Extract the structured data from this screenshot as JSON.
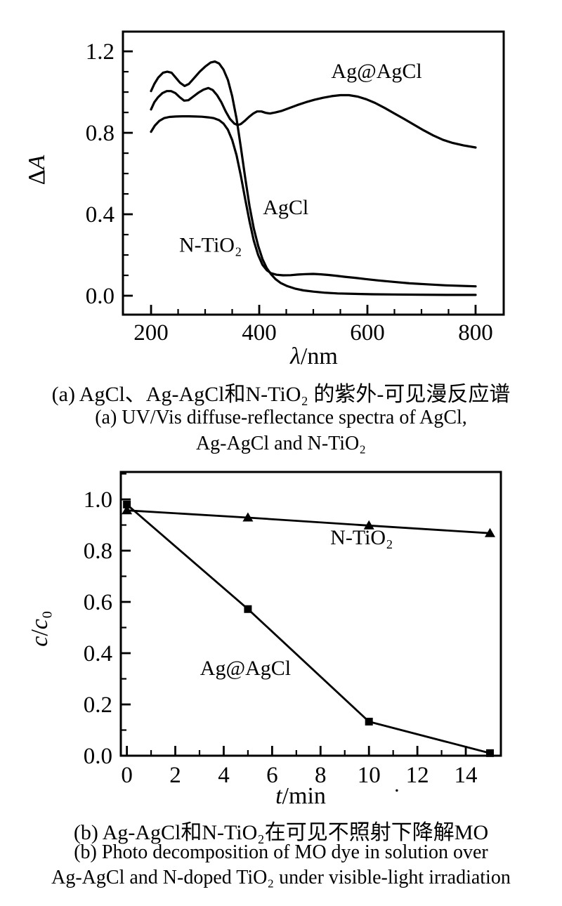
{
  "page": {
    "background": "#ffffff",
    "ink": "#000000"
  },
  "captions": {
    "a": {
      "zh": "(a) AgCl、Ag-AgCl和N-TiO₂ 的紫外-可见漫反应谱",
      "en_line1": "(a) UV/Vis diffuse-reflectance spectra of AgCl,",
      "en_line2": "Ag-AgCl and N-TiO₂"
    },
    "b": {
      "zh": "(b) Ag-AgCl和N-TiO₂在可见不照射下降解MO",
      "en_line1": "(b) Photo decomposition of MO dye in solution over",
      "en_line2": "Ag-AgCl and N-doped TiO₂ under visible-light irradiation"
    }
  },
  "chart_data": [
    {
      "type": "line",
      "title": "",
      "xlabel": "*λ*/nm",
      "ylabel": "Δ*A*",
      "xlim": [
        148,
        852
      ],
      "ylim": [
        -0.093,
        1.297
      ],
      "grid": false,
      "legend": "inline-annotations",
      "x_ticks": {
        "major": [
          200,
          400,
          600,
          800
        ],
        "labels": [
          "200",
          "400",
          "600",
          "800"
        ],
        "minor": [
          250,
          300,
          350,
          450,
          500,
          550,
          650,
          700,
          750
        ]
      },
      "y_ticks": {
        "major": [
          0.0,
          0.4,
          0.8,
          1.2
        ],
        "labels": [
          "0.0",
          "0.4",
          "0.8",
          "1.2"
        ],
        "minor": [
          0.1,
          0.2,
          0.3,
          0.5,
          0.6,
          0.7,
          0.9,
          1.0,
          1.1
        ]
      },
      "series": [
        {
          "name": "AgCl",
          "marker": "none",
          "points": [
            [
              200,
              1.005
            ],
            [
              206,
              1.04
            ],
            [
              213,
              1.07
            ],
            [
              222,
              1.095
            ],
            [
              230,
              1.1
            ],
            [
              238,
              1.095
            ],
            [
              246,
              1.07
            ],
            [
              254,
              1.045
            ],
            [
              262,
              1.03
            ],
            [
              270,
              1.04
            ],
            [
              280,
              1.07
            ],
            [
              290,
              1.1
            ],
            [
              300,
              1.125
            ],
            [
              310,
              1.145
            ],
            [
              318,
              1.15
            ],
            [
              326,
              1.14
            ],
            [
              334,
              1.11
            ],
            [
              342,
              1.06
            ],
            [
              350,
              0.98
            ],
            [
              358,
              0.87
            ],
            [
              366,
              0.73
            ],
            [
              374,
              0.58
            ],
            [
              382,
              0.44
            ],
            [
              390,
              0.33
            ],
            [
              398,
              0.245
            ],
            [
              406,
              0.18
            ],
            [
              414,
              0.135
            ],
            [
              422,
              0.105
            ],
            [
              430,
              0.082
            ],
            [
              440,
              0.062
            ],
            [
              452,
              0.047
            ],
            [
              466,
              0.035
            ],
            [
              482,
              0.026
            ],
            [
              500,
              0.02
            ],
            [
              520,
              0.015
            ],
            [
              545,
              0.011
            ],
            [
              575,
              0.009
            ],
            [
              610,
              0.007
            ],
            [
              650,
              0.006
            ],
            [
              700,
              0.005
            ],
            [
              750,
              0.004
            ],
            [
              800,
              0.004
            ]
          ]
        },
        {
          "name": "N-TiO₂",
          "marker": "none",
          "points": [
            [
              200,
              0.805
            ],
            [
              207,
              0.835
            ],
            [
              215,
              0.858
            ],
            [
              224,
              0.872
            ],
            [
              234,
              0.878
            ],
            [
              246,
              0.88
            ],
            [
              258,
              0.881
            ],
            [
              270,
              0.881
            ],
            [
              282,
              0.88
            ],
            [
              294,
              0.879
            ],
            [
              306,
              0.876
            ],
            [
              316,
              0.872
            ],
            [
              326,
              0.862
            ],
            [
              334,
              0.845
            ],
            [
              342,
              0.815
            ],
            [
              350,
              0.765
            ],
            [
              358,
              0.69
            ],
            [
              366,
              0.59
            ],
            [
              374,
              0.475
            ],
            [
              382,
              0.365
            ],
            [
              390,
              0.27
            ],
            [
              398,
              0.2
            ],
            [
              406,
              0.152
            ],
            [
              414,
              0.125
            ],
            [
              422,
              0.11
            ],
            [
              432,
              0.103
            ],
            [
              444,
              0.1
            ],
            [
              458,
              0.101
            ],
            [
              472,
              0.104
            ],
            [
              486,
              0.106
            ],
            [
              500,
              0.107
            ],
            [
              514,
              0.105
            ],
            [
              528,
              0.102
            ],
            [
              542,
              0.098
            ],
            [
              558,
              0.093
            ],
            [
              576,
              0.088
            ],
            [
              596,
              0.082
            ],
            [
              620,
              0.075
            ],
            [
              648,
              0.068
            ],
            [
              678,
              0.061
            ],
            [
              710,
              0.056
            ],
            [
              745,
              0.051
            ],
            [
              800,
              0.046
            ]
          ]
        },
        {
          "name": "Ag@AgCl",
          "marker": "none",
          "points": [
            [
              200,
              0.915
            ],
            [
              206,
              0.95
            ],
            [
              213,
              0.975
            ],
            [
              221,
              0.995
            ],
            [
              229,
              1.005
            ],
            [
              237,
              1.005
            ],
            [
              245,
              0.995
            ],
            [
              253,
              0.975
            ],
            [
              261,
              0.958
            ],
            [
              269,
              0.96
            ],
            [
              278,
              0.978
            ],
            [
              288,
              0.998
            ],
            [
              297,
              1.012
            ],
            [
              306,
              1.02
            ],
            [
              314,
              1.01
            ],
            [
              322,
              0.985
            ],
            [
              330,
              0.95
            ],
            [
              338,
              0.905
            ],
            [
              346,
              0.868
            ],
            [
              354,
              0.845
            ],
            [
              360,
              0.838
            ],
            [
              366,
              0.843
            ],
            [
              373,
              0.858
            ],
            [
              381,
              0.878
            ],
            [
              389,
              0.895
            ],
            [
              396,
              0.905
            ],
            [
              404,
              0.905
            ],
            [
              412,
              0.898
            ],
            [
              420,
              0.895
            ],
            [
              430,
              0.9
            ],
            [
              442,
              0.908
            ],
            [
              456,
              0.922
            ],
            [
              470,
              0.936
            ],
            [
              486,
              0.95
            ],
            [
              502,
              0.962
            ],
            [
              518,
              0.972
            ],
            [
              534,
              0.98
            ],
            [
              550,
              0.985
            ],
            [
              566,
              0.985
            ],
            [
              582,
              0.978
            ],
            [
              598,
              0.965
            ],
            [
              614,
              0.947
            ],
            [
              632,
              0.922
            ],
            [
              650,
              0.895
            ],
            [
              668,
              0.868
            ],
            [
              686,
              0.84
            ],
            [
              704,
              0.812
            ],
            [
              722,
              0.787
            ],
            [
              740,
              0.765
            ],
            [
              758,
              0.75
            ],
            [
              778,
              0.738
            ],
            [
              800,
              0.728
            ]
          ]
        }
      ],
      "annotations": [
        {
          "text": "Ag@AgCl",
          "x": 617,
          "y": 1.07
        },
        {
          "text": "AgCl",
          "x": 449,
          "y": 0.4
        },
        {
          "text": "N-TiO₂",
          "x": 310,
          "y": 0.215
        }
      ]
    },
    {
      "type": "line",
      "title": "",
      "xlabel": "*t*/min",
      "ylabel": "*c*/*c*₀",
      "xlim": [
        -0.25,
        15.45
      ],
      "ylim": [
        0,
        1.107
      ],
      "grid": false,
      "legend": "inline-annotations",
      "x_ticks": {
        "major": [
          0,
          2,
          4,
          6,
          8,
          10,
          12,
          14
        ],
        "labels": [
          "0",
          "2",
          "4",
          "6",
          "8",
          "10",
          "12",
          "14"
        ],
        "minor": [
          1,
          3,
          5,
          7,
          9,
          11,
          13
        ]
      },
      "y_ticks": {
        "major": [
          0.0,
          0.2,
          0.4,
          0.6,
          0.8,
          1.0
        ],
        "labels": [
          "0.0",
          "0.2",
          "0.4",
          "0.6",
          "0.8",
          "1.0"
        ],
        "minor": [
          0.1,
          0.3,
          0.5,
          0.7,
          0.9,
          1.1
        ]
      },
      "series": [
        {
          "name": "N-TiO₂",
          "marker": "triangle",
          "points": [
            [
              0,
              0.957
            ],
            [
              5,
              0.929
            ],
            [
              10,
              0.898
            ],
            [
              15,
              0.868
            ]
          ]
        },
        {
          "name": "Ag@AgCl",
          "marker": "square",
          "points": [
            [
              0,
              0.98
            ],
            [
              5,
              0.572
            ],
            [
              10,
              0.133
            ],
            [
              15,
              0.01
            ]
          ]
        }
      ],
      "annotations": [
        {
          "text": "N-TiO₂",
          "x": 9.7,
          "y": 0.825
        },
        {
          "text": "Ag@AgCl",
          "x": 4.9,
          "y": 0.315
        },
        {
          "text": ".",
          "x": 11.15,
          "y": -0.14,
          "size": 30
        }
      ]
    }
  ]
}
